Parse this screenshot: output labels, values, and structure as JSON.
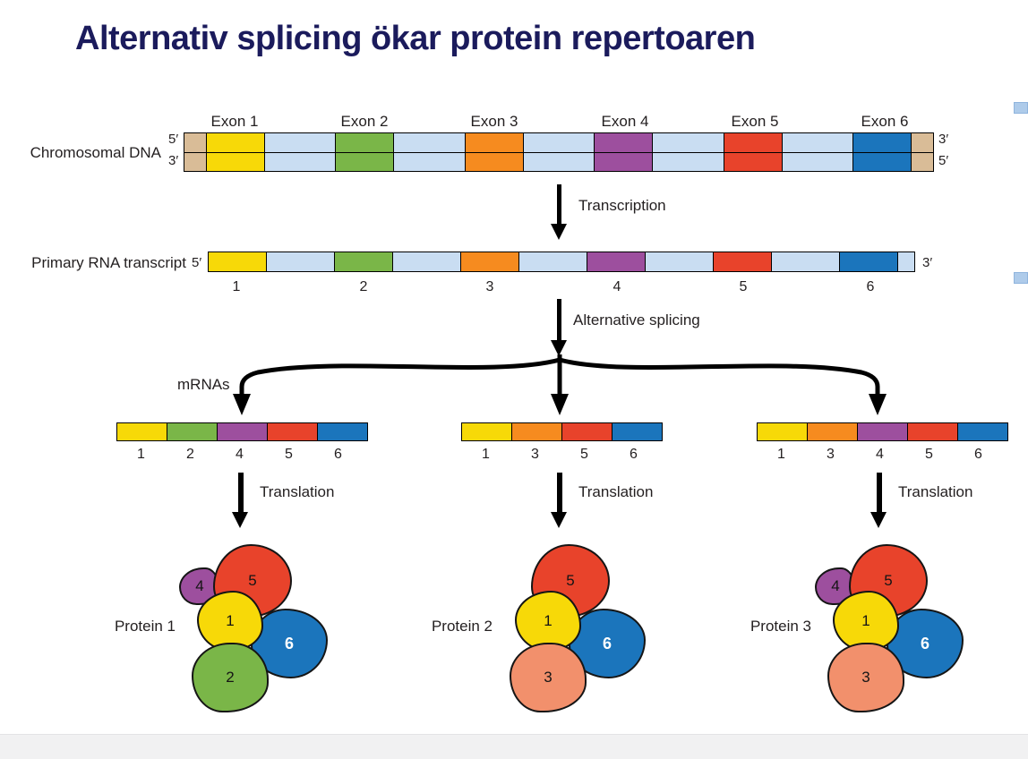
{
  "title": "Alternativ splicing ökar protein repertoaren",
  "colors": {
    "title_text": "#1b1b5c",
    "ink": "#231f20",
    "exon1": "#f7d908",
    "exon2": "#7ab648",
    "exon3": "#f68b1f",
    "exon4": "#9d4f9e",
    "exon5": "#e8432b",
    "exon6": "#1b75bc",
    "subunit3": "#f2906c",
    "intron": "#c9ddf2",
    "cap": "#d9bc97"
  },
  "labels": {
    "chromosomal_dna": "Chromosomal DNA",
    "primary_rna_transcript": "Primary RNA transcript",
    "transcription": "Transcription",
    "alternative_splicing": "Alternative splicing",
    "mrnas": "mRNAs",
    "translation": "Translation",
    "five_prime": "5′",
    "three_prime": "3′"
  },
  "dna": {
    "exon_labels": [
      "Exon 1",
      "Exon 2",
      "Exon 3",
      "Exon 4",
      "Exon 5",
      "Exon 6"
    ]
  },
  "rna": {
    "numbers": [
      "1",
      "2",
      "3",
      "4",
      "5",
      "6"
    ]
  },
  "mrnas": [
    {
      "exons": [
        "1",
        "2",
        "4",
        "5",
        "6"
      ]
    },
    {
      "exons": [
        "1",
        "3",
        "5",
        "6"
      ]
    },
    {
      "exons": [
        "1",
        "3",
        "4",
        "5",
        "6"
      ]
    }
  ],
  "proteins": [
    {
      "label": "Protein 1",
      "subunits": [
        "4",
        "5",
        "1",
        "2",
        "6"
      ]
    },
    {
      "label": "Protein 2",
      "subunits": [
        "5",
        "1",
        "3",
        "6"
      ]
    },
    {
      "label": "Protein 3",
      "subunits": [
        "4",
        "5",
        "1",
        "3",
        "6"
      ]
    }
  ]
}
